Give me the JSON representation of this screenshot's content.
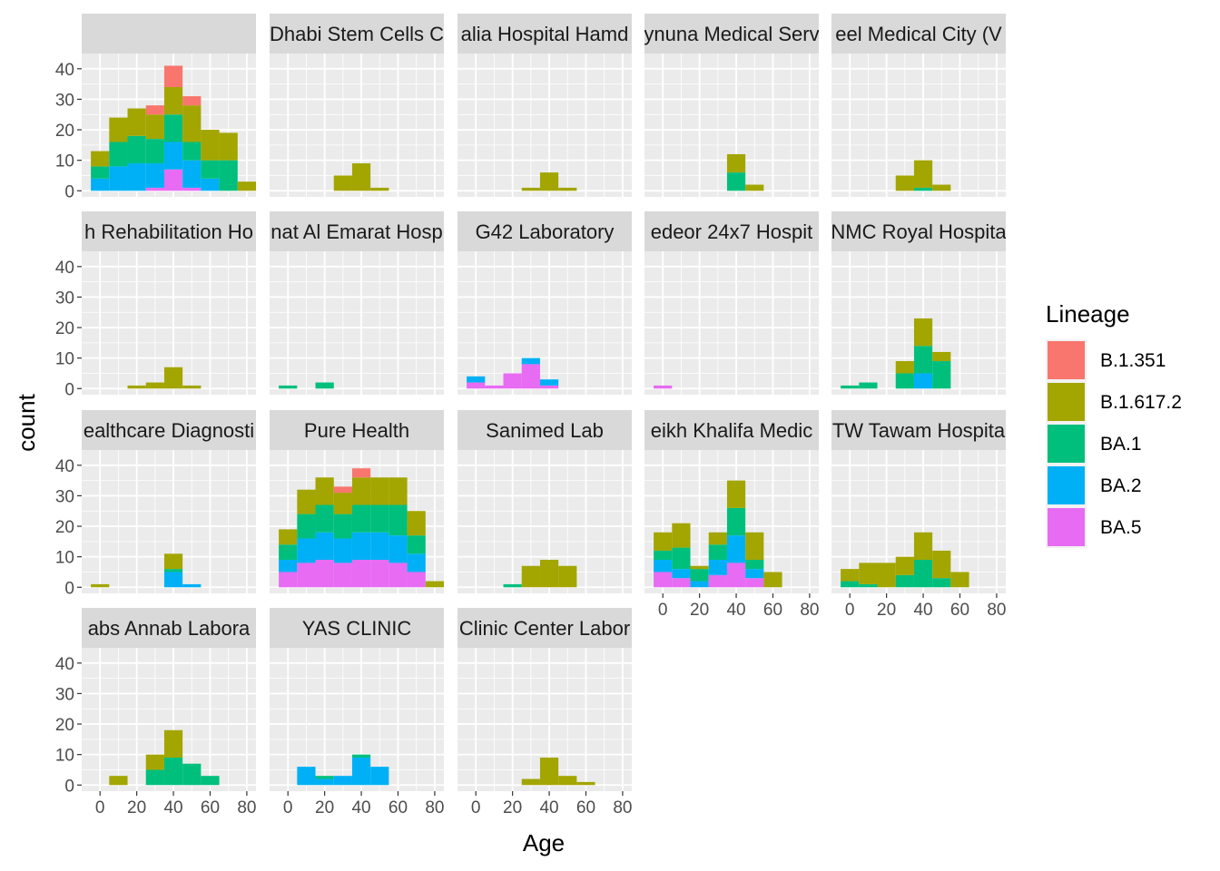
{
  "chart_data": {
    "type": "bar",
    "subtype": "faceted-stacked-histogram",
    "xlabel": "Age",
    "ylabel": "count",
    "xlim": [
      -10,
      85
    ],
    "ylim": [
      -2,
      45
    ],
    "x_ticks": [
      0,
      20,
      40,
      60,
      80
    ],
    "y_ticks": [
      0,
      10,
      20,
      30,
      40
    ],
    "bin_width": 10,
    "bin_starts": [
      -5,
      5,
      15,
      25,
      35,
      45,
      55,
      65,
      75
    ],
    "grid": true,
    "legend": {
      "title": "Lineage",
      "placement": "right",
      "entries": [
        {
          "name": "B.1.351",
          "color": "#F8766D"
        },
        {
          "name": "B.1.617.2",
          "color": "#A3A500"
        },
        {
          "name": "BA.1",
          "color": "#00BF7D"
        },
        {
          "name": "BA.2",
          "color": "#00B0F6"
        },
        {
          "name": "BA.5",
          "color": "#E76BF3"
        }
      ]
    },
    "stack_order": [
      "BA.5",
      "BA.2",
      "BA.1",
      "B.1.617.2",
      "B.1.351"
    ],
    "facets": [
      {
        "label": "",
        "bins": [
          {
            "BA.2": 4,
            "BA.1": 4,
            "B.1.617.2": 5
          },
          {
            "BA.2": 8,
            "BA.1": 8,
            "B.1.617.2": 8
          },
          {
            "BA.2": 9,
            "BA.1": 9,
            "B.1.617.2": 9
          },
          {
            "BA.5": 1,
            "BA.2": 8,
            "BA.1": 8,
            "B.1.617.2": 8,
            "B.1.351": 3
          },
          {
            "BA.5": 7,
            "BA.2": 9,
            "BA.1": 9,
            "B.1.617.2": 9,
            "B.1.351": 7
          },
          {
            "BA.5": 1,
            "BA.2": 9,
            "BA.1": 6,
            "B.1.617.2": 12,
            "B.1.351": 3
          },
          {
            "BA.2": 4,
            "BA.1": 6,
            "B.1.617.2": 10
          },
          {
            "BA.1": 10,
            "B.1.617.2": 9
          },
          {
            "B.1.617.2": 3
          }
        ]
      },
      {
        "label": "Dhabi Stem Cells C",
        "bins": [
          {},
          {},
          {},
          {
            "B.1.617.2": 5
          },
          {
            "B.1.617.2": 9
          },
          {
            "B.1.617.2": 1
          },
          {},
          {},
          {}
        ]
      },
      {
        "label": "alia Hospital Hamd",
        "bins": [
          {},
          {},
          {},
          {
            "B.1.617.2": 1
          },
          {
            "B.1.617.2": 6
          },
          {
            "B.1.617.2": 1
          },
          {},
          {},
          {}
        ]
      },
      {
        "label": "ynuna Medical Serv",
        "bins": [
          {},
          {},
          {},
          {},
          {
            "BA.1": 6,
            "B.1.617.2": 6
          },
          {
            "B.1.617.2": 2
          },
          {},
          {},
          {}
        ]
      },
      {
        "label": "eel Medical City (V",
        "bins": [
          {},
          {},
          {},
          {
            "B.1.617.2": 5
          },
          {
            "BA.1": 1,
            "B.1.617.2": 9
          },
          {
            "B.1.617.2": 2
          },
          {},
          {},
          {}
        ]
      },
      {
        "label": "h Rehabilitation Ho",
        "bins": [
          {},
          {},
          {
            "B.1.617.2": 1
          },
          {
            "B.1.617.2": 2
          },
          {
            "B.1.617.2": 7
          },
          {
            "B.1.617.2": 1
          },
          {},
          {},
          {}
        ]
      },
      {
        "label": "nat Al Emarat Hosp",
        "bins": [
          {
            "BA.1": 1
          },
          {},
          {
            "BA.1": 2
          },
          {},
          {},
          {},
          {},
          {},
          {}
        ]
      },
      {
        "label": "G42 Laboratory",
        "bins": [
          {
            "BA.5": 2,
            "BA.2": 2
          },
          {
            "BA.5": 1
          },
          {
            "BA.5": 5
          },
          {
            "BA.5": 8,
            "BA.2": 2
          },
          {
            "BA.5": 1,
            "BA.2": 2
          },
          {},
          {},
          {},
          {}
        ]
      },
      {
        "label": "edeor 24x7 Hospit",
        "bins": [
          {
            "BA.5": 1
          },
          {},
          {},
          {},
          {},
          {},
          {},
          {},
          {}
        ]
      },
      {
        "label": "NMC Royal Hospita",
        "bins": [
          {
            "BA.1": 1
          },
          {
            "BA.1": 2
          },
          {},
          {
            "BA.1": 5,
            "B.1.617.2": 4
          },
          {
            "BA.2": 5,
            "BA.1": 9,
            "B.1.617.2": 9
          },
          {
            "BA.1": 9,
            "B.1.617.2": 3
          },
          {},
          {},
          {}
        ]
      },
      {
        "label": "ealthcare Diagnosti",
        "bins": [
          {
            "B.1.617.2": 1
          },
          {},
          {},
          {},
          {
            "BA.2": 5,
            "BA.1": 1,
            "B.1.617.2": 5
          },
          {
            "BA.2": 1
          },
          {},
          {},
          {}
        ]
      },
      {
        "label": "Pure Health",
        "bins": [
          {
            "BA.5": 5,
            "BA.2": 4,
            "BA.1": 5,
            "B.1.617.2": 5
          },
          {
            "BA.5": 8,
            "BA.2": 8,
            "BA.1": 8,
            "B.1.617.2": 8
          },
          {
            "BA.5": 9,
            "BA.2": 9,
            "BA.1": 9,
            "B.1.617.2": 9
          },
          {
            "BA.5": 8,
            "BA.2": 8,
            "BA.1": 8,
            "B.1.617.2": 7,
            "B.1.351": 2
          },
          {
            "BA.5": 9,
            "BA.2": 9,
            "BA.1": 9,
            "B.1.617.2": 9,
            "B.1.351": 3
          },
          {
            "BA.5": 9,
            "BA.2": 9,
            "BA.1": 9,
            "B.1.617.2": 9
          },
          {
            "BA.5": 8,
            "BA.2": 9,
            "BA.1": 10,
            "B.1.617.2": 9
          },
          {
            "BA.5": 5,
            "BA.2": 6,
            "BA.1": 6,
            "B.1.617.2": 8
          },
          {
            "B.1.617.2": 2
          }
        ]
      },
      {
        "label": "Sanimed Lab",
        "bins": [
          {},
          {},
          {
            "BA.1": 1
          },
          {
            "B.1.617.2": 7
          },
          {
            "B.1.617.2": 9
          },
          {
            "B.1.617.2": 7
          },
          {},
          {},
          {}
        ]
      },
      {
        "label": "eikh Khalifa Medic",
        "bins": [
          {
            "BA.5": 5,
            "BA.2": 4,
            "BA.1": 3,
            "B.1.617.2": 6
          },
          {
            "BA.5": 3,
            "BA.2": 3,
            "BA.1": 7,
            "B.1.617.2": 8
          },
          {
            "BA.2": 2,
            "BA.1": 4,
            "B.1.617.2": 1
          },
          {
            "BA.5": 4,
            "BA.2": 5,
            "BA.1": 5,
            "B.1.617.2": 4
          },
          {
            "BA.5": 8,
            "BA.2": 9,
            "BA.1": 9,
            "B.1.617.2": 9
          },
          {
            "BA.5": 3,
            "BA.2": 3,
            "BA.1": 3,
            "B.1.617.2": 9
          },
          {
            "B.1.617.2": 5
          },
          {},
          {}
        ]
      },
      {
        "label": "TW Tawam Hospita",
        "bins": [
          {
            "BA.1": 2,
            "B.1.617.2": 4
          },
          {
            "BA.1": 1,
            "B.1.617.2": 7
          },
          {
            "B.1.617.2": 8
          },
          {
            "BA.1": 4,
            "B.1.617.2": 6
          },
          {
            "BA.1": 9,
            "B.1.617.2": 9
          },
          {
            "BA.1": 3,
            "B.1.617.2": 9
          },
          {
            "B.1.617.2": 5
          },
          {},
          {}
        ]
      },
      {
        "label": "abs Annab Labora",
        "bins": [
          {},
          {
            "B.1.617.2": 3
          },
          {},
          {
            "BA.1": 5,
            "B.1.617.2": 5
          },
          {
            "BA.1": 9,
            "B.1.617.2": 9
          },
          {
            "BA.1": 7
          },
          {
            "BA.1": 3
          },
          {},
          {}
        ]
      },
      {
        "label": "YAS CLINIC",
        "bins": [
          {},
          {
            "BA.2": 6
          },
          {
            "BA.2": 2,
            "BA.1": 1
          },
          {
            "BA.2": 3
          },
          {
            "BA.2": 9,
            "BA.1": 1
          },
          {
            "BA.2": 6
          },
          {},
          {},
          {}
        ]
      },
      {
        "label": "Clinic Center Labor",
        "bins": [
          {},
          {},
          {},
          {
            "B.1.617.2": 2
          },
          {
            "B.1.617.2": 9
          },
          {
            "B.1.617.2": 3
          },
          {
            "B.1.617.2": 1
          },
          {},
          {}
        ]
      }
    ]
  }
}
